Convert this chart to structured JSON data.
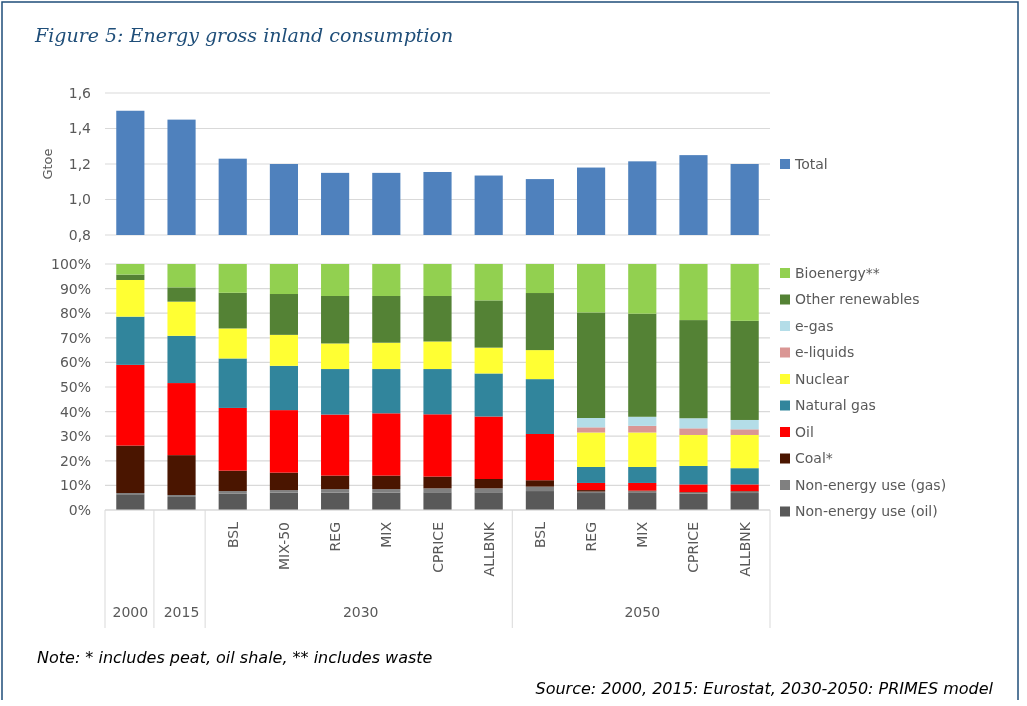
{
  "chart_data": [
    {
      "type": "bar",
      "title": "Figure 5: Energy gross inland consumption",
      "ylabel": "Gtoe",
      "categories": [
        null,
        null,
        null,
        null,
        null,
        null,
        null,
        null,
        null,
        null,
        null,
        null,
        null
      ],
      "ylim": [
        0.8,
        1.6
      ],
      "yticks": [
        {
          "value": 0.8,
          "label": "0,8"
        },
        {
          "value": 1.0,
          "label": "1,0"
        },
        {
          "value": 1.2,
          "label": "1,2"
        },
        {
          "value": 1.4,
          "label": "1,4"
        },
        {
          "value": 1.6,
          "label": "1,6"
        }
      ],
      "grid": "y",
      "legend": "right",
      "tick_labels": "y",
      "series": [
        {
          "name": "Total",
          "color": "#4f81bd",
          "values": [
            1.5,
            1.45,
            1.23,
            1.2,
            1.15,
            1.15,
            1.155,
            1.135,
            1.115,
            1.18,
            1.215,
            1.25,
            1.2
          ]
        }
      ]
    },
    {
      "type": "bar",
      "stacked": true,
      "categories": [
        null,
        null,
        "BSL",
        "MIX-50",
        "REG",
        "MIX",
        "CPRICE",
        "ALLBNK",
        "BSL",
        "REG",
        "MIX",
        "CPRICE",
        "ALLBNK"
      ],
      "ylim": [
        0,
        100
      ],
      "yticks": [
        {
          "value": 0,
          "label": "0%"
        },
        {
          "value": 10,
          "label": "10%"
        },
        {
          "value": 20,
          "label": "20%"
        },
        {
          "value": 30,
          "label": "30%"
        },
        {
          "value": 40,
          "label": "40%"
        },
        {
          "value": 50,
          "label": "50%"
        },
        {
          "value": 60,
          "label": "60%"
        },
        {
          "value": 70,
          "label": "70%"
        },
        {
          "value": 80,
          "label": "80%"
        },
        {
          "value": 90,
          "label": "90%"
        },
        {
          "value": 100,
          "label": "100%"
        }
      ],
      "grid": "y",
      "legend": "right",
      "annotations": [
        "2000",
        "2015",
        "2030",
        "2050",
        "Note: * includes peat, oil shale, ** includes waste",
        "Source: 2000, 2015: Eurostat, 2030-2050: PRIMES model"
      ],
      "series": [
        {
          "name": "Non-energy use (oil)",
          "color": "#595959",
          "values": [
            6.4,
            5.3,
            6.6,
            7.1,
            7.1,
            7.1,
            7.2,
            7.2,
            7.7,
            6.9,
            7.2,
            6.6,
            6.9
          ]
        },
        {
          "name": "Non-energy use (gas)",
          "color": "#808080",
          "values": [
            0.5,
            0.8,
            1.1,
            1.0,
            1.4,
            1.4,
            1.6,
            1.6,
            1.8,
            0.6,
            0.4,
            0.5,
            0.6
          ]
        },
        {
          "name": "Coal*",
          "color": "#4a1500",
          "values": [
            19.3,
            16.2,
            8.3,
            7.1,
            5.5,
            5.5,
            4.8,
            3.8,
            2.6,
            0.6,
            0.3,
            0.2,
            0.2
          ]
        },
        {
          "name": "Oil",
          "color": "#ff0000",
          "values": [
            32.8,
            29.3,
            25.5,
            25.4,
            24.8,
            25.3,
            25.3,
            25.4,
            18.8,
            2.9,
            3.1,
            3.1,
            2.7
          ]
        },
        {
          "name": "Natural gas",
          "color": "#31859c",
          "values": [
            19.6,
            19.2,
            20.1,
            18.0,
            18.5,
            18.0,
            18.4,
            17.5,
            22.3,
            6.5,
            6.5,
            7.5,
            6.6
          ]
        },
        {
          "name": "Nuclear",
          "color": "#ffff33",
          "values": [
            14.9,
            13.9,
            12.2,
            12.6,
            10.4,
            10.7,
            11.2,
            10.5,
            11.8,
            14.0,
            14.0,
            12.6,
            13.5
          ]
        },
        {
          "name": "e-liquids",
          "color": "#da9694",
          "values": [
            0,
            0,
            0,
            0,
            0,
            0,
            0,
            0,
            0,
            2.1,
            2.7,
            2.7,
            2.3
          ]
        },
        {
          "name": "e-gas",
          "color": "#b4dde8",
          "values": [
            0,
            0,
            0,
            0,
            0,
            0,
            0,
            0,
            0,
            3.8,
            3.7,
            4.1,
            3.8
          ]
        },
        {
          "name": "Other renewables",
          "color": "#548235",
          "values": [
            2.2,
            5.8,
            14.5,
            16.6,
            19.3,
            19.0,
            18.5,
            19.2,
            23.2,
            42.9,
            41.9,
            39.9,
            40.3
          ]
        },
        {
          "name": "Bioenergy**",
          "color": "#92d050",
          "values": [
            4.3,
            9.5,
            11.7,
            12.2,
            13.0,
            13.0,
            13.0,
            14.8,
            11.8,
            19.7,
            20.2,
            22.8,
            23.1
          ]
        }
      ]
    }
  ]
}
